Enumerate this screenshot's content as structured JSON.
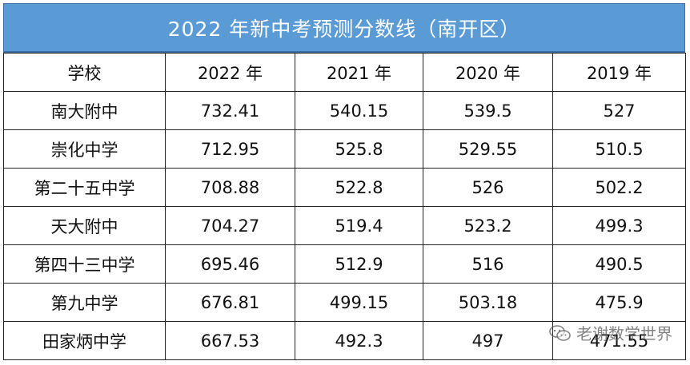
{
  "title": "2022 年新中考预测分数线（南开区）",
  "table": {
    "headers": [
      "学校",
      "2022 年",
      "2021 年",
      "2020 年",
      "2019 年"
    ],
    "rows": [
      [
        "南大附中",
        "732.41",
        "540.15",
        "539.5",
        "527"
      ],
      [
        "崇化中学",
        "712.95",
        "525.8",
        "529.55",
        "510.5"
      ],
      [
        "第二十五中学",
        "708.88",
        "522.8",
        "526",
        "502.2"
      ],
      [
        "天大附中",
        "704.27",
        "519.4",
        "523.2",
        "499.3"
      ],
      [
        "第四十三中学",
        "695.46",
        "512.9",
        "516",
        "490.5"
      ],
      [
        "第九中学",
        "676.81",
        "499.15",
        "503.18",
        "475.9"
      ],
      [
        "田家炳中学",
        "667.53",
        "492.3",
        "497",
        "471.55"
      ]
    ]
  },
  "watermark": {
    "text": "老谢数学世界",
    "icon": "wechat-icon"
  },
  "colors": {
    "title_bg": "#5b9bd5",
    "title_text": "#ffffff",
    "border": "#222222"
  }
}
